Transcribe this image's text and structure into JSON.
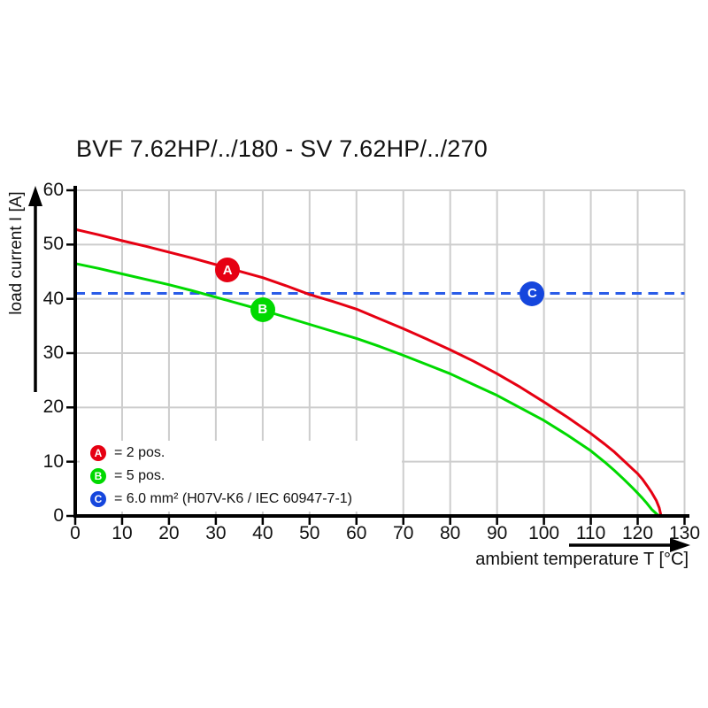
{
  "chart_data": {
    "type": "line",
    "title": "BVF 7.62HP/../180 - SV 7.62HP/../270",
    "xlabel": "ambient temperature T [°C]",
    "ylabel": "load current I [A]",
    "xlim": [
      0,
      130
    ],
    "ylim": [
      0,
      60
    ],
    "x_ticks": [
      0,
      10,
      20,
      30,
      40,
      50,
      60,
      70,
      80,
      90,
      100,
      110,
      120,
      130
    ],
    "y_ticks": [
      0,
      10,
      20,
      30,
      40,
      50,
      60
    ],
    "grid": true,
    "grid_color": "#cdcdcd",
    "axis_color": "#000000",
    "series": [
      {
        "name": "2 pos.",
        "color": "#e60012",
        "points": [
          [
            0,
            52.8
          ],
          [
            5,
            51.8
          ],
          [
            10,
            50.7
          ],
          [
            15,
            49.7
          ],
          [
            20,
            48.6
          ],
          [
            25,
            47.5
          ],
          [
            30,
            46.3
          ],
          [
            35,
            45.1
          ],
          [
            40,
            43.9
          ],
          [
            45,
            42.4
          ],
          [
            50,
            40.8
          ],
          [
            55,
            39.5
          ],
          [
            60,
            38.1
          ],
          [
            65,
            36.3
          ],
          [
            70,
            34.5
          ],
          [
            75,
            32.6
          ],
          [
            80,
            30.6
          ],
          [
            85,
            28.5
          ],
          [
            90,
            26.2
          ],
          [
            95,
            23.7
          ],
          [
            100,
            21.0
          ],
          [
            105,
            18.2
          ],
          [
            110,
            15.2
          ],
          [
            113,
            13.2
          ],
          [
            115,
            11.8
          ],
          [
            117,
            10.2
          ],
          [
            119,
            8.6
          ],
          [
            120,
            7.8
          ],
          [
            121,
            6.8
          ],
          [
            122,
            5.6
          ],
          [
            123,
            4.3
          ],
          [
            124,
            2.8
          ],
          [
            124.6,
            1.5
          ],
          [
            125,
            0
          ]
        ]
      },
      {
        "name": "5 pos.",
        "color": "#00d900",
        "points": [
          [
            0,
            46.5
          ],
          [
            5,
            45.6
          ],
          [
            10,
            44.6
          ],
          [
            15,
            43.6
          ],
          [
            20,
            42.6
          ],
          [
            25,
            41.5
          ],
          [
            30,
            40.3
          ],
          [
            35,
            39.1
          ],
          [
            40,
            37.9
          ],
          [
            45,
            36.6
          ],
          [
            50,
            35.3
          ],
          [
            55,
            34.0
          ],
          [
            60,
            32.7
          ],
          [
            65,
            31.2
          ],
          [
            70,
            29.6
          ],
          [
            75,
            27.9
          ],
          [
            80,
            26.2
          ],
          [
            85,
            24.2
          ],
          [
            90,
            22.2
          ],
          [
            95,
            19.9
          ],
          [
            100,
            17.6
          ],
          [
            105,
            14.9
          ],
          [
            110,
            12.0
          ],
          [
            113,
            9.9
          ],
          [
            115,
            8.4
          ],
          [
            117,
            6.8
          ],
          [
            119,
            5.1
          ],
          [
            120,
            4.2
          ],
          [
            121,
            3.3
          ],
          [
            122,
            2.3
          ],
          [
            123,
            1.2
          ],
          [
            124,
            0.4
          ],
          [
            124.6,
            0
          ]
        ]
      }
    ],
    "reference_line": {
      "value": 41,
      "style": "dashed",
      "color": "#2a5ce8"
    },
    "markers": [
      {
        "letter": "A",
        "x": 32.5,
        "y": 45.3,
        "color": "#e60012"
      },
      {
        "letter": "B",
        "x": 40.0,
        "y": 38.0,
        "color": "#00d900"
      },
      {
        "letter": "C",
        "x": 97.5,
        "y": 41.0,
        "color": "#1546dd"
      }
    ],
    "legend_position": "lower-left"
  },
  "legend": {
    "items": [
      {
        "letter": "A",
        "color": "#e60012",
        "label": "= 2 pos."
      },
      {
        "letter": "B",
        "color": "#00d900",
        "label": "= 5 pos."
      },
      {
        "letter": "C",
        "color": "#1546dd",
        "label": "= 6.0 mm² (H07V-K6 / IEC 60947-7-1)"
      }
    ]
  }
}
